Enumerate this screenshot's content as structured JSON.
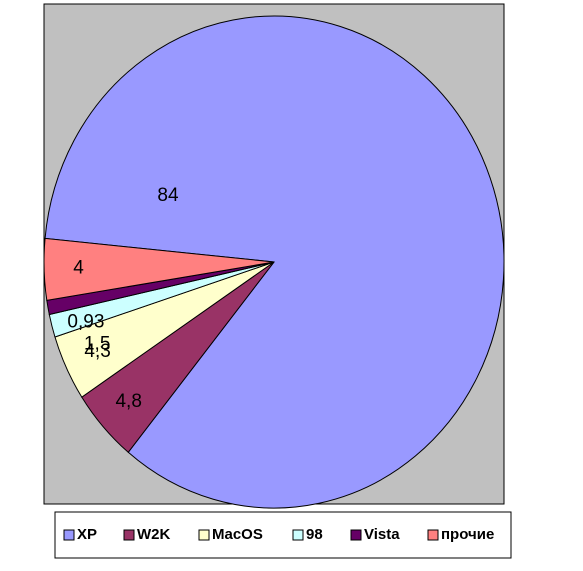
{
  "chart_data": {
    "type": "pie",
    "title": "",
    "categories": [
      "XP",
      "W2K",
      "MacOS",
      "98",
      "Vista",
      "прочие"
    ],
    "values": [
      84,
      4.8,
      4.3,
      1.5,
      0.93,
      4
    ],
    "data_labels": [
      "84",
      "4,8",
      "4,3",
      "1,5",
      "0,93",
      "4"
    ],
    "colors": [
      "#9999ff",
      "#993366",
      "#ffffcc",
      "#ccffff",
      "#660066",
      "#ff8080"
    ],
    "legend_position": "bottom",
    "plot_background": "#c0c0c0"
  }
}
